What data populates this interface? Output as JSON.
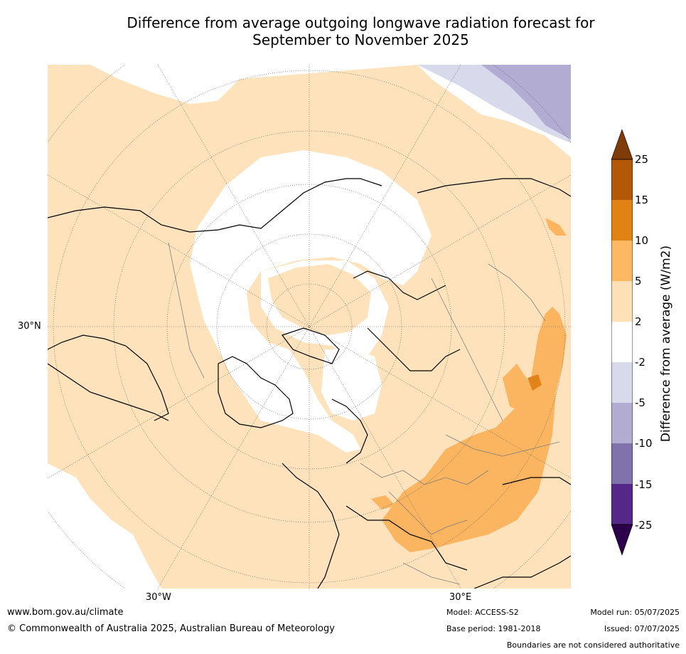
{
  "title": {
    "line1": "Difference from average outgoing longwave radiation forecast for",
    "line2": "September to November 2025"
  },
  "map": {
    "projection": "north polar stereographic",
    "graticule_labels": {
      "lat_30n": "30°N",
      "lon_30w": "30°W",
      "lon_30e": "30°E"
    },
    "colors": {
      "ocean_land_background": "#ffffff",
      "positive_2_5": "#fde2bb",
      "positive_5_10": "#fbb45f",
      "positive_10_15": "#e2831a",
      "positive_15_25": "#b35806",
      "negative_2_5": "#d8daeb",
      "negative_5_10": "#b2abd2",
      "coastline": "#000000",
      "borders": "#7f7f7f"
    }
  },
  "colorbar": {
    "title": "Difference from average (W/m2)",
    "ticks": [
      "25",
      "15",
      "10",
      "5",
      "2",
      "-2",
      "-5",
      "-10",
      "-15",
      "-25"
    ],
    "colors": [
      "#7f3b08",
      "#b35806",
      "#e08214",
      "#fdb863",
      "#fee0b6",
      "#ffffff",
      "#d8daeb",
      "#b2abd2",
      "#8073ac",
      "#542788",
      "#2d004b"
    ]
  },
  "footer": {
    "website": "www.bom.gov.au/climate",
    "copyright": "© Commonwealth of Australia 2025, Australian Bureau of Meteorology",
    "model": "Model: ACCESS-S2",
    "base_period": "Base period: 1981-2018",
    "model_run": "Model run: 05/07/2025",
    "issued": "Issued: 07/07/2025",
    "disclaimer": "Boundaries are not considered authoritative"
  }
}
